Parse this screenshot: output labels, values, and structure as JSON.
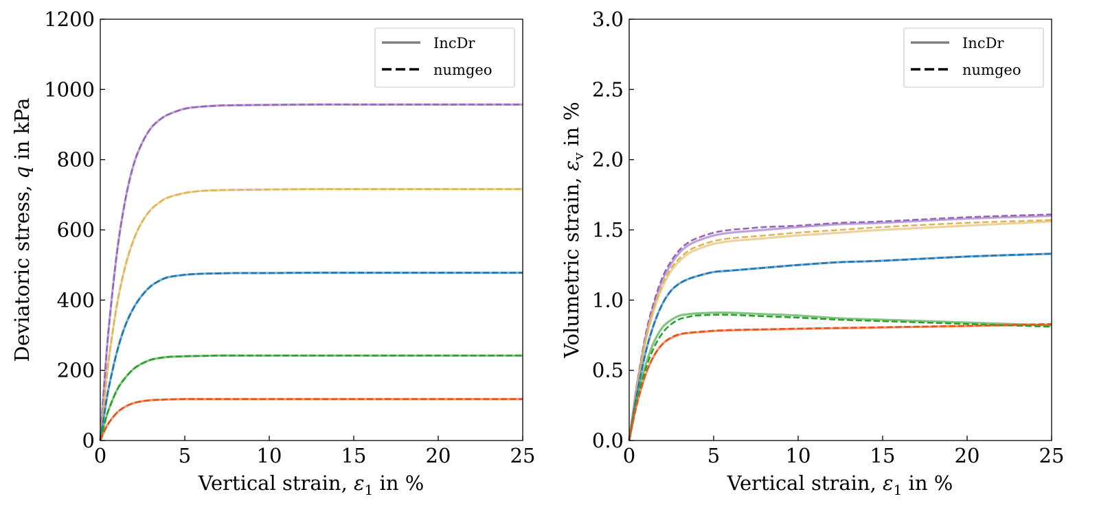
{
  "chart_data": [
    {
      "type": "line",
      "title": "",
      "xlabel": "Vertical strain, ε1 in %",
      "xlabel_parts": {
        "pre": "Vertical strain, ",
        "sym": "ε",
        "sub": "1",
        "post": " in %"
      },
      "ylabel": "Deviatoric stress, q in kPa",
      "ylabel_parts": {
        "pre": "Deviatoric stress, ",
        "sym": "q",
        "sub": "",
        "post": " in kPa"
      },
      "xlim": [
        0,
        25
      ],
      "ylim": [
        0,
        1200
      ],
      "xticks": [
        0,
        5,
        10,
        15,
        20,
        25
      ],
      "xtick_labels": [
        "0",
        "5",
        "10",
        "15",
        "20",
        "25"
      ],
      "yticks": [
        0,
        200,
        400,
        600,
        800,
        1000,
        1200
      ],
      "ytick_labels": [
        "0",
        "200",
        "400",
        "600",
        "800",
        "1000",
        "1200"
      ],
      "grid": false,
      "legend": {
        "placement": "top-right",
        "entries": [
          {
            "label": "IncDr",
            "style": "solid"
          },
          {
            "label": "numgeo",
            "style": "dashed"
          }
        ]
      },
      "x": [
        0,
        0.25,
        0.5,
        1,
        1.5,
        2,
        2.5,
        3,
        3.5,
        4,
        5,
        6,
        7,
        8,
        10,
        12.5,
        15,
        20,
        25
      ],
      "series": [
        {
          "name": "IncDr-purple",
          "method": "IncDr",
          "color": "#9467bd",
          "values": [
            0,
            170,
            320,
            540,
            690,
            790,
            850,
            890,
            913,
            928,
            945,
            951,
            954,
            955,
            956,
            957,
            957,
            957,
            957
          ]
        },
        {
          "name": "numgeo-purple",
          "method": "numgeo",
          "color": "#9467bd",
          "values": [
            0,
            170,
            320,
            540,
            690,
            790,
            850,
            890,
            913,
            928,
            945,
            951,
            954,
            955,
            956,
            957,
            957,
            957,
            957
          ]
        },
        {
          "name": "IncDr-yellow",
          "method": "IncDr",
          "color": "#e0b55a",
          "values": [
            0,
            120,
            230,
            390,
            500,
            575,
            625,
            658,
            678,
            692,
            705,
            711,
            713,
            714,
            715,
            716,
            716,
            716,
            716
          ]
        },
        {
          "name": "numgeo-yellow",
          "method": "numgeo",
          "color": "#e0b55a",
          "values": [
            0,
            120,
            230,
            390,
            500,
            575,
            625,
            658,
            678,
            692,
            705,
            711,
            713,
            714,
            715,
            716,
            716,
            716,
            716
          ]
        },
        {
          "name": "IncDr-blue",
          "method": "IncDr",
          "color": "#1f77b4",
          "values": [
            0,
            80,
            150,
            255,
            330,
            380,
            415,
            440,
            455,
            465,
            472,
            475,
            476,
            477,
            477,
            478,
            478,
            478,
            478
          ]
        },
        {
          "name": "numgeo-blue",
          "method": "numgeo",
          "color": "#1f77b4",
          "values": [
            0,
            80,
            150,
            255,
            330,
            380,
            415,
            440,
            455,
            465,
            472,
            475,
            476,
            477,
            477,
            478,
            478,
            478,
            478
          ]
        },
        {
          "name": "IncDr-green",
          "method": "IncDr",
          "color": "#2ca02c",
          "values": [
            0,
            48,
            88,
            145,
            180,
            205,
            220,
            230,
            235,
            238,
            240,
            241,
            242,
            242,
            242,
            242,
            242,
            242,
            242
          ]
        },
        {
          "name": "numgeo-green",
          "method": "numgeo",
          "color": "#2ca02c",
          "values": [
            0,
            48,
            88,
            145,
            180,
            205,
            220,
            230,
            235,
            238,
            240,
            241,
            242,
            242,
            242,
            242,
            242,
            242,
            242
          ]
        },
        {
          "name": "IncDr-orange",
          "method": "IncDr",
          "color": "#e5541b",
          "values": [
            0,
            28,
            50,
            80,
            97,
            107,
            112,
            115,
            116,
            117,
            118,
            118,
            118,
            118,
            118,
            118,
            118,
            118,
            118
          ]
        },
        {
          "name": "numgeo-orange",
          "method": "numgeo",
          "color": "#e5541b",
          "values": [
            0,
            28,
            50,
            80,
            97,
            107,
            112,
            115,
            116,
            117,
            118,
            118,
            118,
            118,
            118,
            118,
            118,
            118,
            118
          ]
        }
      ]
    },
    {
      "type": "line",
      "title": "",
      "xlabel": "Vertical strain, ε1 in %",
      "xlabel_parts": {
        "pre": "Vertical strain, ",
        "sym": "ε",
        "sub": "1",
        "post": " in %"
      },
      "ylabel": "Volumetric strain, εv in %",
      "ylabel_parts": {
        "pre": "Volumetric strain, ",
        "sym": "ε",
        "sub": "v",
        "post": " in %"
      },
      "xlim": [
        0,
        25
      ],
      "ylim": [
        0,
        3.0
      ],
      "xticks": [
        0,
        5,
        10,
        15,
        20,
        25
      ],
      "xtick_labels": [
        "0",
        "5",
        "10",
        "15",
        "20",
        "25"
      ],
      "yticks": [
        0,
        0.5,
        1.0,
        1.5,
        2.0,
        2.5,
        3.0
      ],
      "ytick_labels": [
        "0.0",
        "0.5",
        "1.0",
        "1.5",
        "2.0",
        "2.5",
        "3.0"
      ],
      "grid": false,
      "legend": {
        "placement": "top-right",
        "entries": [
          {
            "label": "IncDr",
            "style": "solid"
          },
          {
            "label": "numgeo",
            "style": "dashed"
          }
        ]
      },
      "x": [
        0,
        0.25,
        0.5,
        1,
        1.5,
        2,
        2.5,
        3,
        3.5,
        4,
        5,
        6,
        7,
        8,
        10,
        12.5,
        15,
        20,
        25
      ],
      "series": [
        {
          "name": "IncDr-purple",
          "method": "IncDr",
          "color": "#9467bd",
          "values": [
            0,
            0.22,
            0.42,
            0.75,
            0.98,
            1.15,
            1.26,
            1.34,
            1.39,
            1.42,
            1.46,
            1.48,
            1.49,
            1.5,
            1.52,
            1.54,
            1.55,
            1.58,
            1.6
          ]
        },
        {
          "name": "numgeo-purple",
          "method": "numgeo",
          "color": "#9467bd",
          "values": [
            0,
            0.22,
            0.43,
            0.77,
            1.0,
            1.17,
            1.28,
            1.36,
            1.41,
            1.44,
            1.48,
            1.5,
            1.51,
            1.52,
            1.53,
            1.55,
            1.56,
            1.59,
            1.61
          ]
        },
        {
          "name": "IncDr-yellow",
          "method": "IncDr",
          "color": "#e0b55a",
          "values": [
            0,
            0.21,
            0.4,
            0.72,
            0.94,
            1.1,
            1.21,
            1.28,
            1.33,
            1.36,
            1.4,
            1.42,
            1.43,
            1.44,
            1.46,
            1.48,
            1.5,
            1.53,
            1.56
          ]
        },
        {
          "name": "numgeo-yellow",
          "method": "numgeo",
          "color": "#e0b55a",
          "values": [
            0,
            0.21,
            0.41,
            0.74,
            0.96,
            1.12,
            1.23,
            1.3,
            1.35,
            1.38,
            1.42,
            1.44,
            1.45,
            1.46,
            1.48,
            1.5,
            1.52,
            1.55,
            1.57
          ]
        },
        {
          "name": "IncDr-blue",
          "method": "IncDr",
          "color": "#1f77b4",
          "values": [
            0,
            0.19,
            0.36,
            0.64,
            0.84,
            0.98,
            1.07,
            1.12,
            1.15,
            1.17,
            1.2,
            1.21,
            1.22,
            1.23,
            1.25,
            1.27,
            1.28,
            1.31,
            1.33
          ]
        },
        {
          "name": "numgeo-blue",
          "method": "numgeo",
          "color": "#1f77b4",
          "values": [
            0,
            0.19,
            0.36,
            0.64,
            0.84,
            0.98,
            1.07,
            1.12,
            1.15,
            1.17,
            1.2,
            1.21,
            1.22,
            1.23,
            1.25,
            1.27,
            1.28,
            1.31,
            1.33
          ]
        },
        {
          "name": "IncDr-green",
          "method": "IncDr",
          "color": "#2ca02c",
          "values": [
            0,
            0.17,
            0.32,
            0.55,
            0.71,
            0.81,
            0.86,
            0.89,
            0.9,
            0.905,
            0.91,
            0.91,
            0.905,
            0.9,
            0.89,
            0.87,
            0.86,
            0.84,
            0.82
          ]
        },
        {
          "name": "numgeo-green",
          "method": "numgeo",
          "color": "#2ca02c",
          "values": [
            0,
            0.17,
            0.31,
            0.52,
            0.67,
            0.77,
            0.83,
            0.865,
            0.88,
            0.89,
            0.895,
            0.895,
            0.89,
            0.885,
            0.875,
            0.86,
            0.85,
            0.83,
            0.81
          ]
        },
        {
          "name": "IncDr-orange",
          "method": "IncDr",
          "color": "#e5541b",
          "values": [
            0,
            0.15,
            0.28,
            0.48,
            0.61,
            0.69,
            0.73,
            0.755,
            0.765,
            0.77,
            0.78,
            0.785,
            0.788,
            0.79,
            0.795,
            0.8,
            0.805,
            0.815,
            0.825
          ]
        },
        {
          "name": "numgeo-orange",
          "method": "numgeo",
          "color": "#e5541b",
          "values": [
            0,
            0.15,
            0.28,
            0.48,
            0.61,
            0.69,
            0.735,
            0.758,
            0.768,
            0.773,
            0.782,
            0.787,
            0.79,
            0.792,
            0.797,
            0.802,
            0.807,
            0.817,
            0.83
          ]
        }
      ]
    }
  ]
}
